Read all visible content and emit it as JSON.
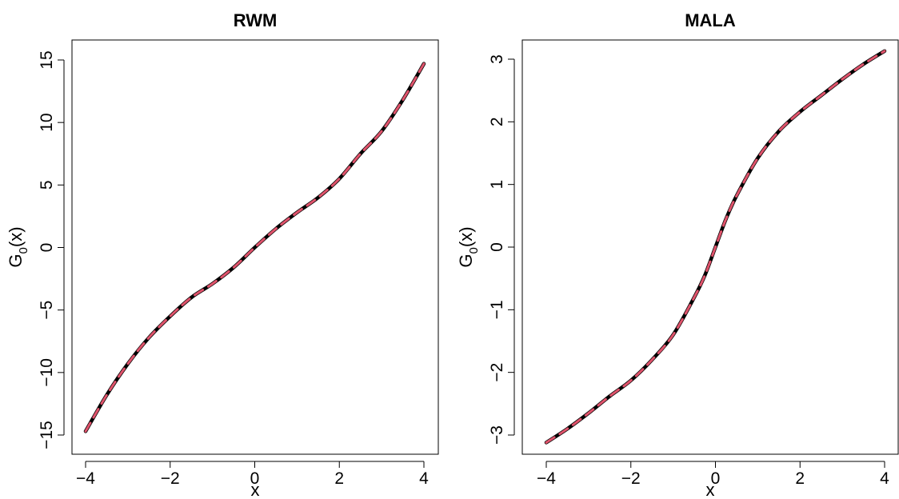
{
  "chart_data": [
    {
      "type": "line",
      "title": "RWM",
      "xlabel": "x",
      "ylabel": "G0(x)",
      "ylabel_base": "G",
      "ylabel_sub": "0",
      "ylabel_tail": "(x)",
      "xlim": [
        -4,
        4
      ],
      "ylim": [
        -15,
        15
      ],
      "xticks": [
        -4,
        -2,
        0,
        2,
        4
      ],
      "xtick_labels": [
        "−4",
        "−2",
        "0",
        "2",
        "4"
      ],
      "yticks": [
        -15,
        -10,
        -5,
        0,
        5,
        10,
        15
      ],
      "ytick_labels": [
        "−15",
        "−10",
        "−5",
        "0",
        "5",
        "10",
        "15"
      ],
      "grid": false,
      "legend": "none",
      "x": [
        -4.0,
        -3.5,
        -3.0,
        -2.5,
        -2.0,
        -1.5,
        -1.0,
        -0.5,
        0.0,
        0.5,
        1.0,
        1.5,
        2.0,
        2.5,
        3.0,
        3.5,
        4.0
      ],
      "series": [
        {
          "color": "#000000",
          "style": "solid",
          "values": [
            -14.7,
            -11.8,
            -9.3,
            -7.2,
            -5.5,
            -4.0,
            -2.9,
            -1.6,
            0.0,
            1.5,
            2.8,
            4.0,
            5.5,
            7.5,
            9.3,
            11.8,
            14.7
          ]
        },
        {
          "color": "#DF536B",
          "style": "dashed",
          "values": [
            -14.7,
            -11.8,
            -9.3,
            -7.2,
            -5.5,
            -4.0,
            -2.9,
            -1.6,
            0.0,
            1.5,
            2.8,
            4.0,
            5.5,
            7.5,
            9.3,
            11.8,
            14.7
          ]
        }
      ]
    },
    {
      "type": "line",
      "title": "MALA",
      "xlabel": "x",
      "ylabel": "G0(x)",
      "ylabel_base": "G",
      "ylabel_sub": "0",
      "ylabel_tail": "(x)",
      "xlim": [
        -4,
        4
      ],
      "ylim": [
        -3.2,
        3.2
      ],
      "xticks": [
        -4,
        -2,
        0,
        2,
        4
      ],
      "xtick_labels": [
        "−4",
        "−2",
        "0",
        "2",
        "4"
      ],
      "yticks": [
        -3,
        -2,
        -1,
        0,
        1,
        2,
        3
      ],
      "ytick_labels": [
        "−3",
        "−2",
        "−1",
        "0",
        "1",
        "2",
        "3"
      ],
      "grid": false,
      "legend": "none",
      "x": [
        -4.0,
        -3.5,
        -3.0,
        -2.5,
        -2.0,
        -1.5,
        -1.0,
        -0.5,
        -0.25,
        0.0,
        0.25,
        0.5,
        1.0,
        1.5,
        2.0,
        2.5,
        3.0,
        3.5,
        4.0
      ],
      "series": [
        {
          "color": "#000000",
          "style": "solid",
          "values": [
            -3.12,
            -2.9,
            -2.65,
            -2.38,
            -2.13,
            -1.8,
            -1.4,
            -0.8,
            -0.45,
            0.0,
            0.45,
            0.82,
            1.42,
            1.85,
            2.16,
            2.42,
            2.68,
            2.92,
            3.13
          ]
        },
        {
          "color": "#DF536B",
          "style": "dashed",
          "values": [
            -3.12,
            -2.9,
            -2.65,
            -2.38,
            -2.13,
            -1.8,
            -1.4,
            -0.8,
            -0.45,
            0.0,
            0.45,
            0.82,
            1.42,
            1.85,
            2.16,
            2.42,
            2.68,
            2.92,
            3.13
          ]
        }
      ]
    }
  ]
}
